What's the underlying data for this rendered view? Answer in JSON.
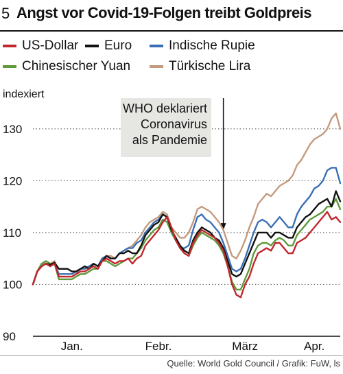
{
  "header": {
    "figure_number": "5",
    "title": "Angst vor Covid-19-Folgen treibt Goldpreis"
  },
  "footer": {
    "source": "Quelle: World Gold Council / Grafik: FuW, ls"
  },
  "colors": {
    "us_dollar": "#c1272d",
    "euro": "#111111",
    "rupie": "#3a6fb5",
    "yuan": "#5e9a3a",
    "lira": "#c49a7e",
    "annotation_bg": "#e6e6e3",
    "grid": "#666666"
  },
  "chart_data": {
    "type": "line",
    "title": "Angst vor Covid-19-Folgen treibt Goldpreis",
    "ylabel": "indexiert",
    "ylim": [
      90,
      135
    ],
    "yticks": [
      90,
      100,
      110,
      120,
      130
    ],
    "x_tick_labels": [
      "Jan.",
      "Febr.",
      "März",
      "Apr."
    ],
    "x_tick_positions": [
      10,
      30,
      50,
      66
    ],
    "x_range": [
      1,
      72
    ],
    "legend_position": "top",
    "grid": "horizontal dotted",
    "annotation": {
      "text_lines": [
        "WHO deklariert",
        "Coronavirus",
        "als Pandemie"
      ],
      "x": 45
    },
    "x": [
      1,
      2,
      3,
      4,
      5,
      6,
      7,
      8,
      9,
      10,
      11,
      12,
      13,
      14,
      15,
      16,
      17,
      18,
      19,
      20,
      21,
      22,
      23,
      24,
      25,
      26,
      27,
      28,
      29,
      30,
      31,
      32,
      33,
      34,
      35,
      36,
      37,
      38,
      39,
      40,
      41,
      42,
      43,
      44,
      45,
      46,
      47,
      48,
      49,
      50,
      51,
      52,
      53,
      54,
      55,
      56,
      57,
      58,
      59,
      60,
      61,
      62,
      63,
      64,
      65,
      66,
      67,
      68,
      69,
      70,
      71,
      72
    ],
    "series": [
      {
        "name": "US-Dollar",
        "color_key": "us_dollar",
        "values": [
          100,
          102.5,
          103.5,
          104,
          103.5,
          104,
          101.5,
          101.5,
          101.5,
          101.5,
          102,
          102.5,
          102.5,
          103,
          103.5,
          103,
          104.5,
          105,
          104.5,
          104,
          104.5,
          104.5,
          105,
          104,
          105,
          105.5,
          107.5,
          108.5,
          109.5,
          110.5,
          112,
          113,
          111,
          108.5,
          107,
          106,
          105.5,
          108,
          109.5,
          110.5,
          110,
          109.5,
          109,
          108,
          106.5,
          103.5,
          100,
          98,
          97.5,
          100,
          101.5,
          104,
          106,
          106.5,
          107,
          106.5,
          108,
          108,
          107,
          106,
          106,
          108,
          108.5,
          109,
          110,
          111,
          112,
          113,
          114,
          112.5,
          113,
          112
        ]
      },
      {
        "name": "Euro",
        "color_key": "euro",
        "values": [
          100,
          102.5,
          103.5,
          104,
          103.8,
          104.2,
          103,
          103,
          103,
          102.5,
          102.5,
          103,
          103.5,
          103,
          104,
          103.5,
          104.5,
          105.5,
          105,
          105,
          106,
          106,
          106.5,
          106,
          106,
          107.5,
          109.5,
          110.5,
          111.5,
          112,
          113.5,
          113,
          110.5,
          109,
          107.5,
          106.5,
          106,
          108.5,
          110,
          111,
          110.5,
          110,
          109,
          108.5,
          107,
          104.5,
          102,
          101.5,
          102,
          104,
          106,
          108,
          110,
          110,
          110,
          109,
          110,
          110,
          109.5,
          109,
          109,
          111,
          112,
          113,
          113.5,
          114.5,
          115.5,
          116,
          116.5,
          115,
          118,
          116
        ]
      },
      {
        "name": "Indische Rupie",
        "color_key": "rupie",
        "values": [
          100,
          102.5,
          103.5,
          104,
          103.5,
          104,
          102,
          102,
          102,
          102,
          102.5,
          103,
          103,
          103.5,
          104,
          103.5,
          105,
          105.5,
          105,
          105,
          106,
          106.5,
          107,
          107,
          108,
          108.5,
          110,
          111,
          112,
          112.5,
          113.5,
          113,
          110,
          108.5,
          107,
          107,
          107.5,
          110.5,
          113,
          113.5,
          112.5,
          112,
          111,
          110,
          108,
          105.5,
          103,
          102.5,
          103,
          105,
          107.5,
          110,
          112,
          112.5,
          112,
          111,
          112,
          113,
          112,
          111,
          111,
          113.5,
          115,
          116,
          117,
          118.5,
          119,
          120,
          122,
          122.5,
          122.5,
          119.5
        ]
      },
      {
        "name": "Chinesischer Yuan",
        "color_key": "yuan",
        "values": [
          100,
          102.5,
          104,
          104.5,
          104,
          104,
          101,
          101,
          101,
          101,
          101.5,
          102,
          102,
          102.5,
          103,
          103,
          104.5,
          104.5,
          104,
          103.5,
          104,
          104.5,
          105,
          105,
          106,
          107,
          108.5,
          109.5,
          110.5,
          111,
          112.5,
          112,
          110,
          108.5,
          107,
          106,
          105.5,
          107.5,
          109,
          110,
          109.5,
          109,
          108.5,
          107.5,
          106,
          103.5,
          100.5,
          99,
          99,
          101,
          103,
          106,
          107.5,
          108,
          108,
          107.5,
          108.5,
          109,
          108.5,
          107.5,
          107.5,
          109.5,
          110.5,
          111.5,
          112.5,
          113,
          113.5,
          114,
          115,
          115,
          116.5,
          114.5
        ]
      },
      {
        "name": "Türkische Lira",
        "color_key": "lira",
        "values": [
          100,
          102.5,
          103.5,
          104.5,
          104,
          104.5,
          101.5,
          101.5,
          101.5,
          101.5,
          102,
          103,
          103,
          103.5,
          104,
          103.5,
          105,
          105.5,
          105.5,
          105,
          106,
          106.5,
          107,
          107.5,
          108.5,
          109.5,
          111,
          112,
          112.5,
          113,
          114,
          113.5,
          111,
          110,
          109,
          109,
          110,
          112,
          114.5,
          115,
          114.5,
          114,
          113,
          112,
          110.5,
          108,
          105.5,
          105,
          106.5,
          108.5,
          111,
          113,
          115.5,
          116.5,
          117.5,
          117,
          118,
          119,
          119.5,
          120,
          121,
          123,
          124,
          125.5,
          127,
          128,
          128.5,
          129,
          130,
          132,
          133,
          130
        ]
      }
    ]
  }
}
